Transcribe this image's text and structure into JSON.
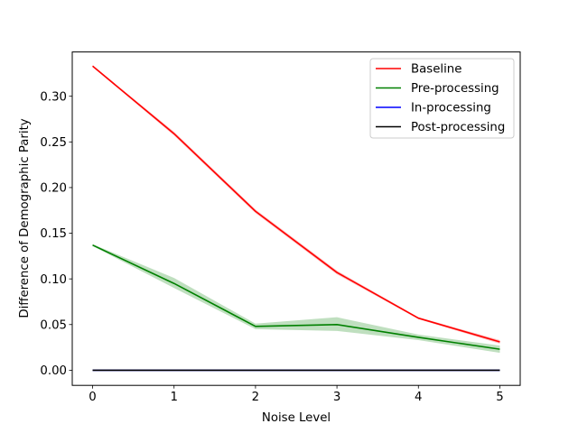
{
  "chart_data": {
    "type": "line",
    "x": [
      0,
      1,
      2,
      3,
      4,
      5
    ],
    "xlabel": "Noise Level",
    "ylabel": "Difference of Demographic Parity",
    "xlim": [
      -0.25,
      5.25
    ],
    "ylim": [
      -0.0166,
      0.3485
    ],
    "xticks": [
      0,
      1,
      2,
      3,
      4,
      5
    ],
    "yticks": [
      0.0,
      0.05,
      0.1,
      0.15,
      0.2,
      0.25,
      0.3
    ],
    "ytick_labels": [
      "0.00",
      "0.05",
      "0.10",
      "0.15",
      "0.20",
      "0.25",
      "0.30"
    ],
    "grid": false,
    "legend_position": "top-right",
    "series": [
      {
        "name": "Baseline",
        "color": "#ff0000",
        "values": [
          0.333,
          0.259,
          0.174,
          0.107,
          0.057,
          0.031
        ],
        "lower": [
          0.332,
          0.257,
          0.172,
          0.105,
          0.056,
          0.029
        ],
        "upper": [
          0.334,
          0.261,
          0.176,
          0.109,
          0.058,
          0.033
        ]
      },
      {
        "name": "Pre-processing",
        "color": "#008000",
        "values": [
          0.137,
          0.095,
          0.048,
          0.05,
          0.036,
          0.023
        ],
        "lower": [
          0.136,
          0.09,
          0.045,
          0.043,
          0.033,
          0.019
        ],
        "upper": [
          0.138,
          0.101,
          0.051,
          0.058,
          0.039,
          0.027
        ]
      },
      {
        "name": "In-processing",
        "color": "#0000ff",
        "values": [
          0.0,
          0.0,
          0.0,
          0.0,
          0.0,
          0.0
        ]
      },
      {
        "name": "Post-processing",
        "color": "#000000",
        "values": [
          0.0,
          0.0,
          0.0,
          0.0,
          0.0,
          0.0
        ]
      }
    ]
  }
}
